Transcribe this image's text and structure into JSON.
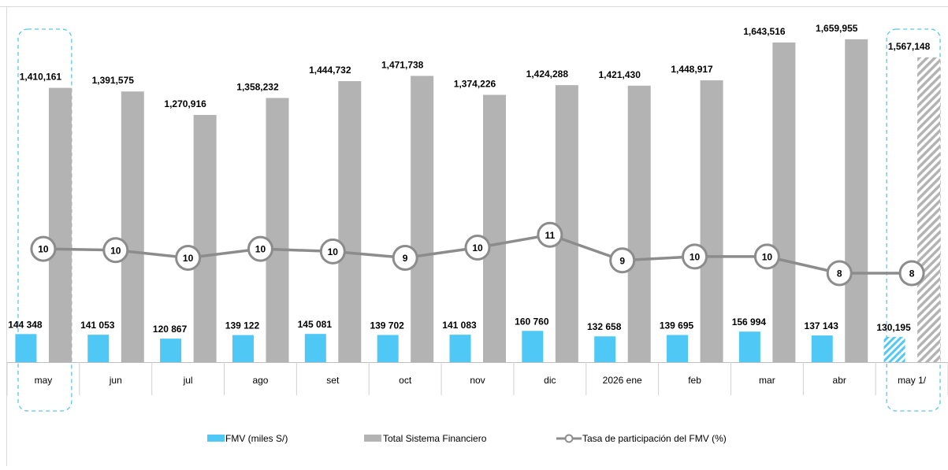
{
  "chart_data": {
    "type": "bar",
    "categories": [
      "may",
      "jun",
      "jul",
      "ago",
      "set",
      "oct",
      "nov",
      "dic",
      "2026 ene",
      "feb",
      "mar",
      "abr",
      "may 1/"
    ],
    "series": [
      {
        "name": "FMV (miles S/)",
        "kind": "bar",
        "color": "#4fc8f5",
        "values": [
          144348,
          141053,
          120867,
          139122,
          145081,
          139702,
          141083,
          160760,
          132658,
          139695,
          156994,
          137143,
          130195
        ],
        "labels": [
          "144 348",
          "141 053",
          "120 867",
          "139 122",
          "145 081",
          "139 702",
          "141 083",
          "160 760",
          "132 658",
          "139 695",
          "156 994",
          "137 143",
          "130,195"
        ]
      },
      {
        "name": "Total Sistema Financiero",
        "kind": "bar",
        "color": "#b3b3b3",
        "values": [
          1410161,
          1391575,
          1270916,
          1358232,
          1444732,
          1471738,
          1374226,
          1424288,
          1421430,
          1448917,
          1643516,
          1659955,
          1567148
        ],
        "labels": [
          "1,410,161",
          "1,391,575",
          "1,270,916",
          "1,358,232",
          "1,444,732",
          "1,471,738",
          "1,374,226",
          "1,424,288",
          "1,421,430",
          "1,448,917",
          "1,643,516",
          "1,659,955",
          "1,567,148"
        ]
      },
      {
        "name": "Tasa de participación del FMV (%)",
        "kind": "line",
        "color": "#8c8c8c",
        "values": [
          10.2,
          10.1,
          9.5,
          10.2,
          10.0,
          9.5,
          10.3,
          11.3,
          9.3,
          9.6,
          9.6,
          8.3,
          8.3
        ],
        "labels": [
          "10",
          "10",
          "10",
          "10",
          "10",
          "9",
          "10",
          "11",
          "9",
          "10",
          "10",
          "8",
          "8"
        ]
      }
    ],
    "projected_category_index": 12,
    "highlighted_category_indices": [
      0,
      12
    ],
    "legend_position": "bottom",
    "grid": false,
    "ylim_bars": [
      0,
      1700000
    ],
    "ylim_rate": [
      0,
      15
    ]
  }
}
